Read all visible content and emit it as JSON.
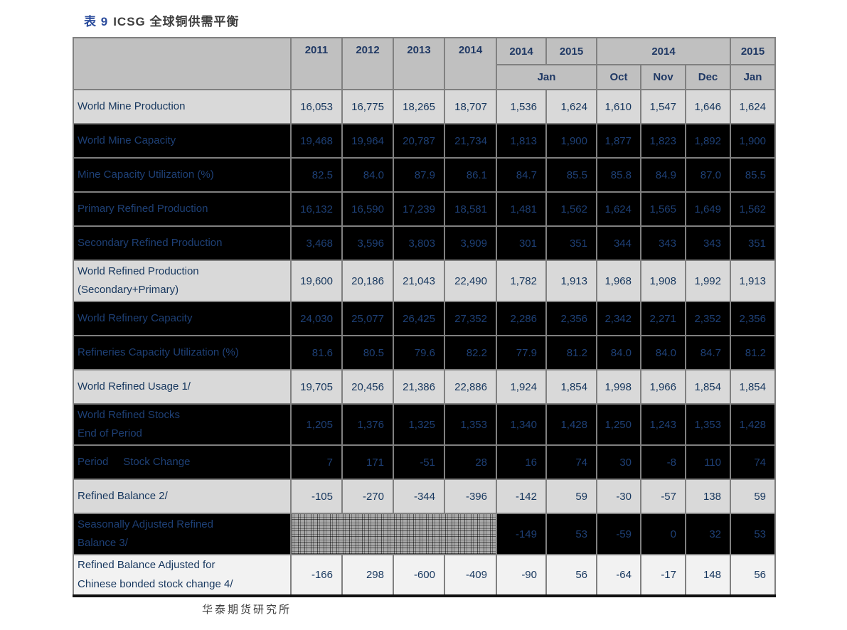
{
  "page": {
    "title_prefix": "表 9",
    "title_rest": "ICSG 全球铜供需平衡",
    "footer": "华泰期货研究所",
    "colors": {
      "title_blue": "#2b4c9c",
      "navy": "#17375E",
      "navy_on_dark": "#1e4076",
      "header_bg": "#c0c0c0",
      "header_text": "#1F3864",
      "row_light": "#d9d9d9",
      "row_white": "#f2f2f2",
      "row_dark": "#000000",
      "border": "#808080"
    }
  },
  "table": {
    "header": {
      "years": [
        "2011",
        "2012",
        "2013",
        "2014"
      ],
      "jan_group": {
        "left_year": "2014",
        "right_year": "2015",
        "sub": "Jan"
      },
      "monthly_2014": {
        "year": "2014",
        "months": [
          "Oct",
          "Nov",
          "Dec"
        ]
      },
      "monthly_2015": {
        "year": "2015",
        "month": "Jan"
      }
    },
    "rows": [
      {
        "label": "World Mine Production",
        "style": "light",
        "values": [
          "16,053",
          "16,775",
          "18,265",
          "18,707",
          "1,536",
          "1,624",
          "1,610",
          "1,547",
          "1,646",
          "1,624"
        ]
      },
      {
        "label": "World Mine Capacity",
        "style": "dark",
        "values": [
          "19,468",
          "19,964",
          "20,787",
          "21,734",
          "1,813",
          "1,900",
          "1,877",
          "1,823",
          "1,892",
          "1,900"
        ]
      },
      {
        "label": "Mine Capacity Utilization (%)",
        "style": "dark",
        "values": [
          "82.5",
          "84.0",
          "87.9",
          "86.1",
          "84.7",
          "85.5",
          "85.8",
          "84.9",
          "87.0",
          "85.5"
        ]
      },
      {
        "label": "Primary Refined Production",
        "style": "dark",
        "values": [
          "16,132",
          "16,590",
          "17,239",
          "18,581",
          "1,481",
          "1,562",
          "1,624",
          "1,565",
          "1,649",
          "1,562"
        ]
      },
      {
        "label": "Secondary Refined Production",
        "style": "dark",
        "values": [
          "3,468",
          "3,596",
          "3,803",
          "3,909",
          "301",
          "351",
          "344",
          "343",
          "343",
          "351"
        ]
      },
      {
        "label": "World Refined Production\n(Secondary+Primary)",
        "style": "light",
        "two_line": true,
        "values": [
          "19,600",
          "20,186",
          "21,043",
          "22,490",
          "1,782",
          "1,913",
          "1,968",
          "1,908",
          "1,992",
          "1,913"
        ]
      },
      {
        "label": "World Refinery Capacity",
        "style": "dark",
        "values": [
          "24,030",
          "25,077",
          "26,425",
          "27,352",
          "2,286",
          "2,356",
          "2,342",
          "2,271",
          "2,352",
          "2,356"
        ]
      },
      {
        "label": "Refineries Capacity Utilization (%)",
        "style": "dark",
        "values": [
          "81.6",
          "80.5",
          "79.6",
          "82.2",
          "77.9",
          "81.2",
          "84.0",
          "84.0",
          "84.7",
          "81.2"
        ]
      },
      {
        "label": "World Refined Usage 1/",
        "style": "light",
        "values": [
          "19,705",
          "20,456",
          "21,386",
          "22,886",
          "1,924",
          "1,854",
          "1,998",
          "1,966",
          "1,854",
          "1,854"
        ]
      },
      {
        "label": "World Refined Stocks\nEnd of Period",
        "style": "dark",
        "two_line": true,
        "values": [
          "1,205",
          "1,376",
          "1,325",
          "1,353",
          "1,340",
          "1,428",
          "1,250",
          "1,243",
          "1,353",
          "1,428"
        ]
      },
      {
        "label": "Period     Stock Change",
        "style": "dark",
        "values": [
          "7",
          "171",
          "-51",
          "28",
          "16",
          "74",
          "30",
          "-8",
          "110",
          "74"
        ]
      },
      {
        "label": "Refined Balance 2/",
        "style": "light",
        "values": [
          "-105",
          "-270",
          "-344",
          "-396",
          "-142",
          "59",
          "-30",
          "-57",
          "138",
          "59"
        ]
      },
      {
        "label": "Seasonally Adjusted Refined\nBalance 3/",
        "style": "dark",
        "two_line": true,
        "hatch_first": 4,
        "values": [
          "-149",
          "53",
          "-59",
          "0",
          "32",
          "53"
        ]
      },
      {
        "label": "Refined Balance Adjusted for\nChinese bonded stock change 4/",
        "style": "white",
        "two_line": true,
        "values": [
          "-166",
          "298",
          "-600",
          "-409",
          "-90",
          "56",
          "-64",
          "-17",
          "148",
          "56"
        ]
      }
    ]
  }
}
